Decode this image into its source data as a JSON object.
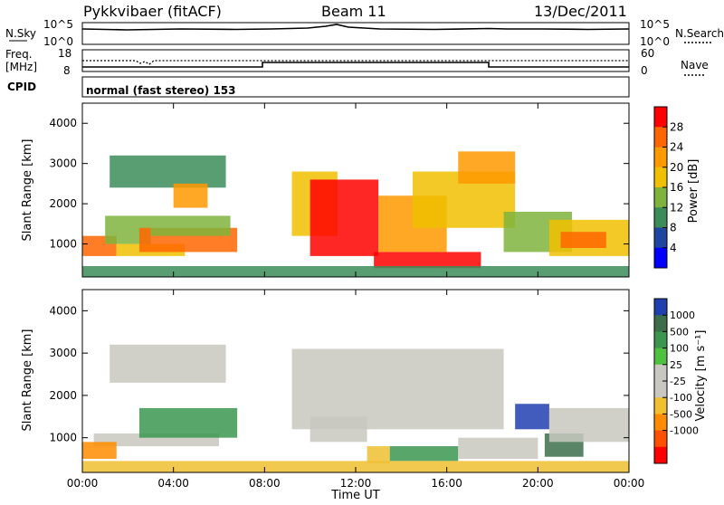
{
  "header": {
    "radar": "Pykkvibaer (fitACF)",
    "beam": "Beam 11",
    "date": "13/Dec/2011"
  },
  "top_panels": {
    "nsky_label": "N.Sky",
    "nsky_ticks": [
      "10^5",
      "10^0"
    ],
    "nsearch_ticks": [
      "10^5",
      "10^0"
    ],
    "nsearch_label": "N.Search",
    "freq_label_1": "Freq.",
    "freq_label_2": "[MHz]",
    "freq_ticks": [
      "18",
      "8"
    ],
    "nave_ticks": [
      "60",
      "0"
    ],
    "nave_label": "Nave",
    "cpid_label": "CPID",
    "cpid_text": "normal (fast stereo) 153"
  },
  "power_colorbar": {
    "label": "Power [dB]",
    "ticks": [
      "28",
      "24",
      "20",
      "16",
      "12",
      "8",
      "4"
    ],
    "colors": [
      "#ff0000",
      "#ff6600",
      "#ff9900",
      "#f0c000",
      "#7fb43c",
      "#3c8c5a",
      "#1e46a0",
      "#0000ff"
    ]
  },
  "velocity_colorbar": {
    "label": "Velocity [m s⁻¹]",
    "ticks": [
      "1000",
      "500",
      "100",
      "25",
      "-25",
      "-100",
      "-500",
      "-1000"
    ],
    "colors": [
      "#2040b0",
      "#3c6e4a",
      "#3c9650",
      "#50c040",
      "#c8c8c0",
      "#c8c8c0",
      "#f0c030",
      "#ff8c00",
      "#ff5000",
      "#ff0000"
    ]
  },
  "chart_data": [
    {
      "type": "heatmap",
      "ylabel": "Slant Range [km]",
      "ylim": [
        180,
        4500
      ],
      "yticks": [
        1000,
        2000,
        3000,
        4000
      ],
      "xlim": [
        0,
        24
      ],
      "colorbar": "Power [dB]",
      "regions": [
        {
          "x0": 0.0,
          "x1": 1.5,
          "y0": 700,
          "y1": 1200,
          "value": 22
        },
        {
          "x0": 1.0,
          "x1": 3.0,
          "y0": 1000,
          "y1": 1700,
          "value": 12
        },
        {
          "x0": 1.5,
          "x1": 4.5,
          "y0": 700,
          "y1": 1000,
          "value": 16
        },
        {
          "x0": 2.5,
          "x1": 6.8,
          "y0": 800,
          "y1": 1400,
          "value": 22
        },
        {
          "x0": 3.0,
          "x1": 6.5,
          "y0": 1200,
          "y1": 1700,
          "value": 12
        },
        {
          "x0": 1.2,
          "x1": 6.3,
          "y0": 2400,
          "y1": 3200,
          "value": 8
        },
        {
          "x0": 4.0,
          "x1": 5.5,
          "y0": 1900,
          "y1": 2500,
          "value": 20
        },
        {
          "x0": 9.2,
          "x1": 11.2,
          "y0": 1200,
          "y1": 2800,
          "value": 14
        },
        {
          "x0": 10.0,
          "x1": 13.0,
          "y0": 700,
          "y1": 2600,
          "value": 26
        },
        {
          "x0": 12.8,
          "x1": 17.5,
          "y0": 400,
          "y1": 800,
          "value": 28
        },
        {
          "x0": 13.0,
          "x1": 16.0,
          "y0": 800,
          "y1": 2200,
          "value": 20
        },
        {
          "x0": 14.5,
          "x1": 19.0,
          "y0": 1400,
          "y1": 2800,
          "value": 14
        },
        {
          "x0": 16.5,
          "x1": 19.0,
          "y0": 2500,
          "y1": 3300,
          "value": 18
        },
        {
          "x0": 18.5,
          "x1": 21.5,
          "y0": 800,
          "y1": 1800,
          "value": 12
        },
        {
          "x0": 20.5,
          "x1": 24.0,
          "y0": 700,
          "y1": 1600,
          "value": 14
        },
        {
          "x0": 21.0,
          "x1": 23.0,
          "y0": 900,
          "y1": 1300,
          "value": 22
        },
        {
          "x0": 0.0,
          "x1": 24.0,
          "y0": 180,
          "y1": 450,
          "value": 8
        }
      ]
    },
    {
      "type": "heatmap",
      "ylabel": "Slant Range [km]",
      "ylim": [
        180,
        4500
      ],
      "yticks": [
        1000,
        2000,
        3000,
        4000
      ],
      "xlim": [
        0,
        24
      ],
      "xticks": [
        "00:00",
        "04:00",
        "08:00",
        "12:00",
        "16:00",
        "20:00",
        "00:00"
      ],
      "xlabel": "Time UT",
      "colorbar": "Velocity [m s⁻¹]",
      "regions": [
        {
          "x0": 1.2,
          "x1": 6.3,
          "y0": 2300,
          "y1": 3200,
          "value": 0
        },
        {
          "x0": 0.5,
          "x1": 6.0,
          "y0": 800,
          "y1": 1100,
          "value": 0
        },
        {
          "x0": 2.5,
          "x1": 6.8,
          "y0": 1000,
          "y1": 1700,
          "value": 60
        },
        {
          "x0": 0.0,
          "x1": 1.5,
          "y0": 500,
          "y1": 900,
          "value": -300
        },
        {
          "x0": 9.2,
          "x1": 18.5,
          "y0": 1200,
          "y1": 3100,
          "value": 0
        },
        {
          "x0": 10.0,
          "x1": 12.5,
          "y0": 900,
          "y1": 1500,
          "value": 0
        },
        {
          "x0": 12.5,
          "x1": 13.5,
          "y0": 400,
          "y1": 800,
          "value": -60
        },
        {
          "x0": 13.5,
          "x1": 16.5,
          "y0": 450,
          "y1": 800,
          "value": 60
        },
        {
          "x0": 16.5,
          "x1": 20.0,
          "y0": 500,
          "y1": 1000,
          "value": 0
        },
        {
          "x0": 19.0,
          "x1": 20.5,
          "y0": 1200,
          "y1": 1800,
          "value": 800
        },
        {
          "x0": 20.3,
          "x1": 22.0,
          "y0": 550,
          "y1": 1100,
          "value": 300
        },
        {
          "x0": 20.5,
          "x1": 24.0,
          "y0": 900,
          "y1": 1700,
          "value": 0
        },
        {
          "x0": 0.0,
          "x1": 24.0,
          "y0": 180,
          "y1": 450,
          "value": -60
        }
      ]
    }
  ]
}
